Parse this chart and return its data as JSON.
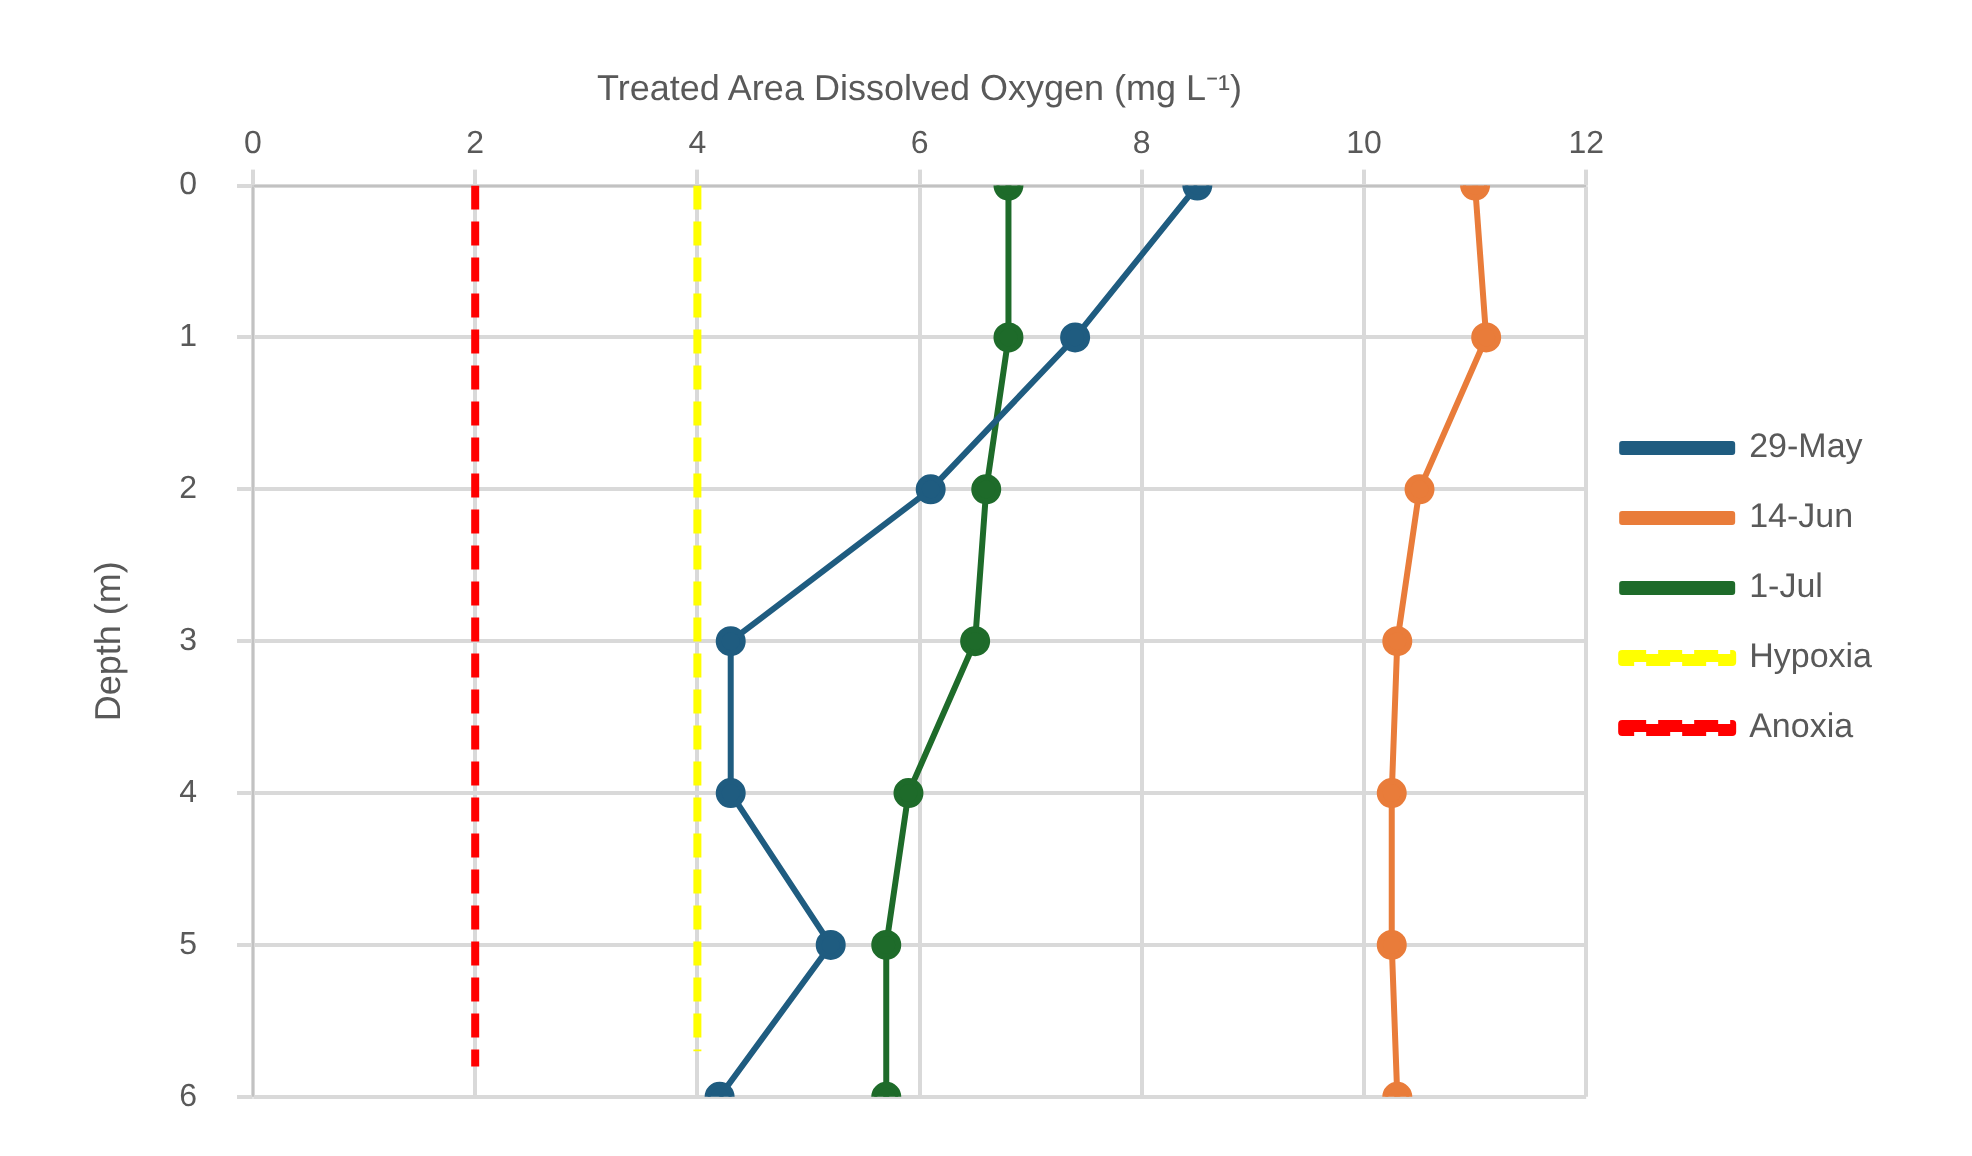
{
  "chart_data": {
    "type": "line",
    "xlabel": "Treated Area Dissolved Oxygen (mg L⁻¹)",
    "ylabel": "Depth (m)",
    "xlim": [
      0,
      12
    ],
    "xticks": [
      0,
      2,
      4,
      6,
      8,
      10,
      12
    ],
    "ylim": [
      6,
      0
    ],
    "yticks": [
      0,
      1,
      2,
      3,
      4,
      5,
      6
    ],
    "grid": true,
    "legend": "right",
    "series": [
      {
        "name": "29-May",
        "color": "#1f5c80",
        "marker": "circle",
        "line_style": "solid",
        "x": [
          8.5,
          7.4,
          6.1,
          4.3,
          4.3,
          5.2,
          4.2
        ],
        "values": [
          0,
          1,
          2,
          3,
          4,
          5,
          6
        ]
      },
      {
        "name": "14-Jun",
        "color": "#e97c3a",
        "marker": "circle",
        "line_style": "solid",
        "x": [
          11.0,
          11.1,
          10.5,
          10.3,
          10.25,
          10.25,
          10.3
        ],
        "values": [
          0,
          1,
          2,
          3,
          4,
          5,
          6
        ]
      },
      {
        "name": "1-Jul",
        "color": "#1e6b2a",
        "marker": "circle",
        "line_style": "solid",
        "x": [
          6.8,
          6.8,
          6.6,
          6.5,
          5.9,
          5.7,
          5.7
        ],
        "values": [
          0,
          1,
          2,
          3,
          4,
          5,
          6
        ]
      },
      {
        "name": "Hypoxia",
        "color": "#ffff00",
        "marker": "none",
        "line_style": "dashed",
        "x": [
          4,
          4
        ],
        "values": [
          0,
          5.7
        ]
      },
      {
        "name": "Anoxia",
        "color": "#ff0000",
        "marker": "none",
        "line_style": "dashed",
        "x": [
          2,
          2
        ],
        "values": [
          0,
          5.8
        ]
      }
    ]
  }
}
